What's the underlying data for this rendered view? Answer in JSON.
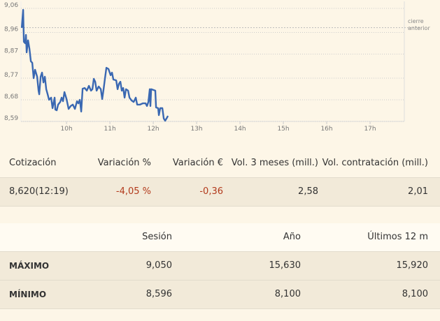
{
  "chart_data": {
    "type": "line",
    "color": "#3a68b2",
    "x": [
      8.968,
      9.0,
      9.016,
      9.048,
      9.065,
      9.081,
      9.113,
      9.145,
      9.177,
      9.21,
      9.242,
      9.274,
      9.323,
      9.355,
      9.371,
      9.403,
      9.435,
      9.468,
      9.5,
      9.532,
      9.565,
      9.597,
      9.645,
      9.677,
      9.726,
      9.742,
      9.774,
      9.806,
      9.855,
      9.887,
      9.919,
      9.952,
      10.0,
      10.048,
      10.097,
      10.145,
      10.194,
      10.242,
      10.274,
      10.306,
      10.339,
      10.371,
      10.419,
      10.468,
      10.516,
      10.565,
      10.597,
      10.629,
      10.661,
      10.694,
      10.742,
      10.79,
      10.823,
      10.855,
      10.887,
      10.919,
      10.968,
      11.016,
      11.048,
      11.081,
      11.145,
      11.177,
      11.21,
      11.242,
      11.274,
      11.306,
      11.339,
      11.371,
      11.419,
      11.452,
      11.5,
      11.548,
      11.597,
      11.629,
      11.694,
      11.758,
      11.823,
      11.855,
      11.887,
      11.919,
      11.935,
      11.952,
      12.048,
      12.065,
      12.113,
      12.129,
      12.161,
      12.21,
      12.242,
      12.274,
      12.306,
      12.339
    ],
    "values": [
      8.979,
      9.054,
      8.921,
      8.915,
      8.95,
      8.877,
      8.927,
      8.892,
      8.84,
      8.834,
      8.77,
      8.805,
      8.776,
      8.718,
      8.703,
      8.776,
      8.793,
      8.752,
      8.776,
      8.724,
      8.703,
      8.68,
      8.689,
      8.645,
      8.689,
      8.639,
      8.636,
      8.66,
      8.671,
      8.689,
      8.674,
      8.712,
      8.683,
      8.642,
      8.654,
      8.66,
      8.642,
      8.674,
      8.665,
      8.68,
      8.631,
      8.726,
      8.729,
      8.718,
      8.738,
      8.718,
      8.724,
      8.767,
      8.755,
      8.718,
      8.735,
      8.724,
      8.683,
      8.724,
      8.77,
      8.813,
      8.808,
      8.782,
      8.793,
      8.764,
      8.761,
      8.724,
      8.747,
      8.755,
      8.718,
      8.729,
      8.689,
      8.724,
      8.718,
      8.689,
      8.677,
      8.671,
      8.689,
      8.66,
      8.66,
      8.665,
      8.665,
      8.654,
      8.671,
      8.724,
      8.654,
      8.724,
      8.718,
      8.648,
      8.645,
      8.616,
      8.645,
      8.645,
      8.602,
      8.593,
      8.602,
      8.613
    ],
    "xlim": [
      8.95,
      17.79
    ],
    "ylim": [
      8.59,
      9.06
    ],
    "xticks": [
      {
        "value": 10,
        "label": "10h"
      },
      {
        "value": 11,
        "label": "11h"
      },
      {
        "value": 12,
        "label": "12h"
      },
      {
        "value": 13,
        "label": "13h"
      },
      {
        "value": 14,
        "label": "14h"
      },
      {
        "value": 15,
        "label": "15h"
      },
      {
        "value": 16,
        "label": "16h"
      },
      {
        "value": 17,
        "label": "17h"
      }
    ],
    "yticks": [
      {
        "value": 9.06,
        "label": "9,06"
      },
      {
        "value": 8.96,
        "label": "8,96"
      },
      {
        "value": 8.87,
        "label": "8,87"
      },
      {
        "value": 8.77,
        "label": "8,77"
      },
      {
        "value": 8.68,
        "label": "8,68"
      },
      {
        "value": 8.59,
        "label": "8,59"
      }
    ],
    "grid": true,
    "reference_line": {
      "value": 8.98,
      "label": "cierre anterior"
    }
  },
  "tables": [
    {
      "header": [
        "Cotización",
        "Variación %",
        "Variación €",
        "Vol. 3 meses (mill.)",
        "Vol. contratación (mill.)"
      ],
      "rows": [
        [
          "8,620(12:19)",
          "-4,05 %",
          "-0,36",
          "2,58",
          "2,01"
        ]
      ]
    },
    {
      "header": [
        "Sesión",
        "Año",
        "Últimos 12 m"
      ],
      "rows": [
        {
          "label": "MÁXIMO",
          "values": [
            "9,050",
            "15,630",
            "15,920"
          ]
        },
        {
          "label": "MÍNIMO",
          "values": [
            "8,596",
            "8,100",
            "8,100"
          ]
        }
      ]
    }
  ]
}
